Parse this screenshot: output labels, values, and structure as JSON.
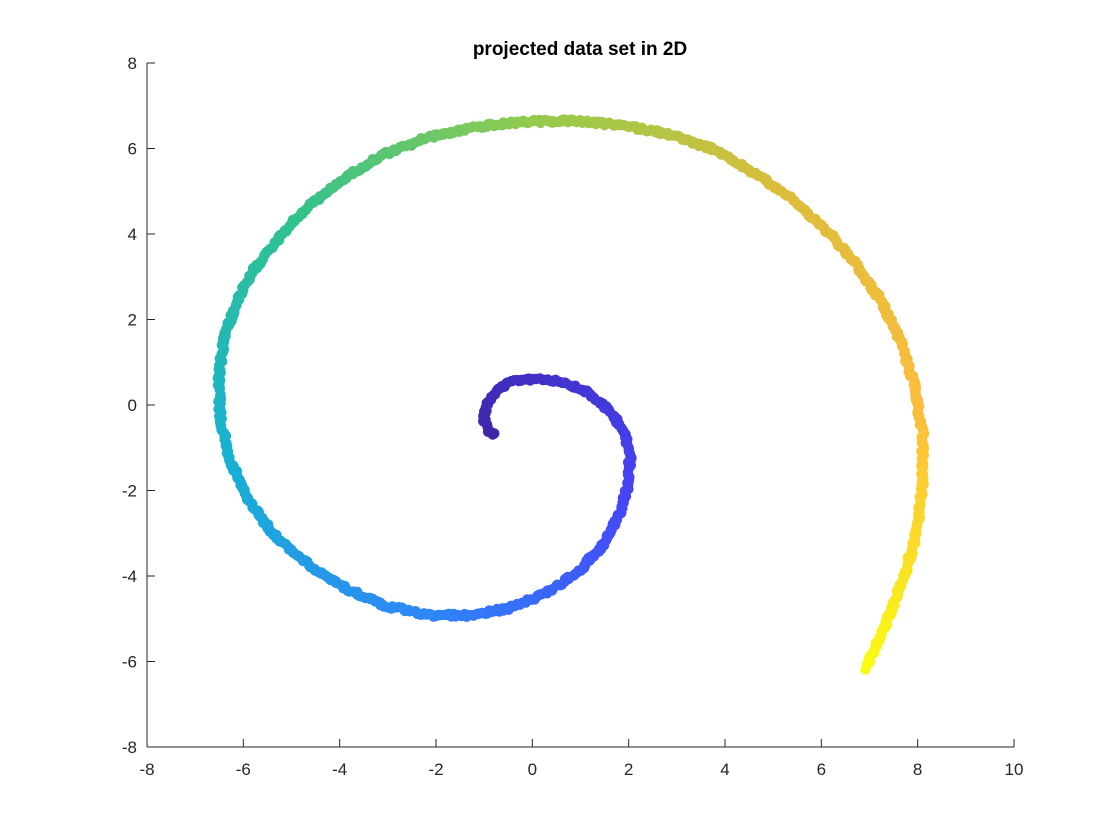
{
  "chart_data": {
    "type": "scatter",
    "title": "projected data set in 2D",
    "xlabel": "",
    "ylabel": "",
    "xlim": [
      -8,
      10
    ],
    "ylim": [
      -8,
      8
    ],
    "xticks": [
      -8,
      -6,
      -4,
      -2,
      0,
      2,
      4,
      6,
      8,
      10
    ],
    "yticks": [
      -8,
      -6,
      -4,
      -2,
      0,
      2,
      4,
      6,
      8
    ],
    "grid": false,
    "box": false,
    "colormap": "parula",
    "colormap_stops": [
      "#3e26a8",
      "#4743f8",
      "#2e87f7",
      "#17b1d3",
      "#31c28d",
      "#94cb4c",
      "#dcbd3b",
      "#fdbd3c",
      "#f9fb14"
    ],
    "series": [
      {
        "points": [
          [
            -0.8,
            -0.68
          ],
          [
            -0.93,
            -0.57
          ],
          [
            -1.0,
            -0.36
          ],
          [
            -0.98,
            -0.11
          ],
          [
            -0.87,
            0.17
          ],
          [
            -0.65,
            0.42
          ],
          [
            -0.33,
            0.58
          ],
          [
            0.1,
            0.62
          ],
          [
            0.6,
            0.56
          ],
          [
            1.12,
            0.31
          ],
          [
            1.55,
            -0.07
          ],
          [
            1.9,
            -0.58
          ],
          [
            2.03,
            -1.2
          ],
          [
            1.98,
            -1.9
          ],
          [
            1.8,
            -2.6
          ],
          [
            1.45,
            -3.3
          ],
          [
            0.95,
            -3.9
          ],
          [
            0.3,
            -4.4
          ],
          [
            -0.45,
            -4.75
          ],
          [
            -1.3,
            -4.92
          ],
          [
            -2.2,
            -4.92
          ],
          [
            -3.1,
            -4.68
          ],
          [
            -3.95,
            -4.25
          ],
          [
            -4.7,
            -3.7
          ],
          [
            -5.4,
            -3.0
          ],
          [
            -5.95,
            -2.15
          ],
          [
            -6.3,
            -1.2
          ],
          [
            -6.48,
            -0.25
          ],
          [
            -6.5,
            0.7
          ],
          [
            -6.4,
            1.6
          ],
          [
            -6.1,
            2.5
          ],
          [
            -5.7,
            3.3
          ],
          [
            -5.2,
            4.0
          ],
          [
            -4.6,
            4.7
          ],
          [
            -3.9,
            5.3
          ],
          [
            -3.1,
            5.85
          ],
          [
            -2.2,
            6.25
          ],
          [
            -1.2,
            6.5
          ],
          [
            -0.2,
            6.62
          ],
          [
            0.8,
            6.65
          ],
          [
            1.8,
            6.55
          ],
          [
            2.8,
            6.35
          ],
          [
            3.7,
            6.0
          ],
          [
            4.5,
            5.5
          ],
          [
            5.3,
            4.9
          ],
          [
            6.0,
            4.2
          ],
          [
            6.65,
            3.4
          ],
          [
            7.2,
            2.5
          ],
          [
            7.65,
            1.5
          ],
          [
            7.95,
            0.4
          ],
          [
            8.1,
            -0.7
          ],
          [
            8.1,
            -1.8
          ],
          [
            8.0,
            -2.9
          ],
          [
            7.75,
            -3.9
          ],
          [
            7.45,
            -4.8
          ],
          [
            7.2,
            -5.5
          ],
          [
            6.92,
            -6.15
          ]
        ]
      }
    ]
  }
}
